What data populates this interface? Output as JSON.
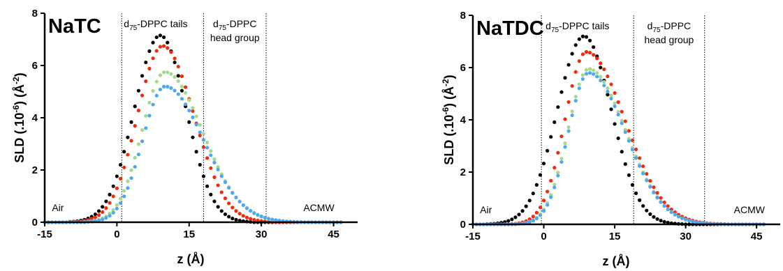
{
  "chart_data": [
    {
      "type": "scatter",
      "title": "NaTC",
      "xlabel": "z (Å)",
      "ylabel_parts": [
        "SLD (.10",
        "-6",
        ") (Å",
        "-2",
        ")"
      ],
      "xlim": [
        -15,
        50
      ],
      "ylim": [
        0,
        8
      ],
      "xticks": [
        -15,
        0,
        15,
        30,
        45
      ],
      "yticks": [
        0,
        2,
        4,
        6,
        8
      ],
      "region_lines": [
        1,
        18,
        31
      ],
      "region_labels": {
        "air": "Air",
        "tails_prefix": "d",
        "tails_sub": "75",
        "tails_suffix": "-DPPC tails",
        "head_prefix": "d",
        "head_sub": "75",
        "head_suffix": "-DPPC",
        "head_line2": "head group",
        "acmw": "ACMW"
      },
      "series": [
        {
          "color": "#000000",
          "peak": 7.15,
          "center": 9,
          "width_left": 7.6,
          "width_right": 7.6,
          "tail": 0.15
        },
        {
          "color": "#f22a0d",
          "peak": 6.75,
          "center": 9.5,
          "width_left": 7.4,
          "width_right": 9.2,
          "tail": 0.1
        },
        {
          "color": "#a6d98c",
          "peak": 5.75,
          "center": 10,
          "width_left": 6.8,
          "width_right": 11.0,
          "tail": 0.06
        },
        {
          "color": "#4ea7f2",
          "peak": 5.2,
          "center": 10,
          "width_left": 6.6,
          "width_right": 11.3,
          "tail": 0.05
        }
      ]
    },
    {
      "type": "scatter",
      "title": "NaTDC",
      "xlabel": "z (Å)",
      "ylabel_parts": [
        "SLD (.10",
        "-6",
        ") (Å",
        "-2",
        ")"
      ],
      "xlim": [
        -15,
        50
      ],
      "ylim": [
        0,
        8
      ],
      "xticks": [
        -15,
        0,
        15,
        30,
        45
      ],
      "yticks": [
        0,
        2,
        4,
        6,
        8
      ],
      "region_lines": [
        -0.5,
        19,
        34
      ],
      "region_labels": {
        "air": "Air",
        "tails_prefix": "d",
        "tails_sub": "75",
        "tails_suffix": "-DPPC tails",
        "head_prefix": "d",
        "head_sub": "75",
        "head_suffix": "-DPPC",
        "head_line2": "head group",
        "acmw": "ACMW"
      },
      "series": [
        {
          "color": "#000000",
          "peak": 7.2,
          "center": 8.5,
          "width_left": 8.0,
          "width_right": 8.2,
          "tail": 0.15
        },
        {
          "color": "#f22a0d",
          "peak": 6.6,
          "center": 9,
          "width_left": 6.4,
          "width_right": 11.5,
          "tail": 0.1
        },
        {
          "color": "#a6d98c",
          "peak": 5.95,
          "center": 9.5,
          "width_left": 6.2,
          "width_right": 11.0,
          "tail": 0.06
        },
        {
          "color": "#4ea7f2",
          "peak": 5.8,
          "center": 9.5,
          "width_left": 6.1,
          "width_right": 11.0,
          "tail": 0.05
        }
      ]
    }
  ]
}
